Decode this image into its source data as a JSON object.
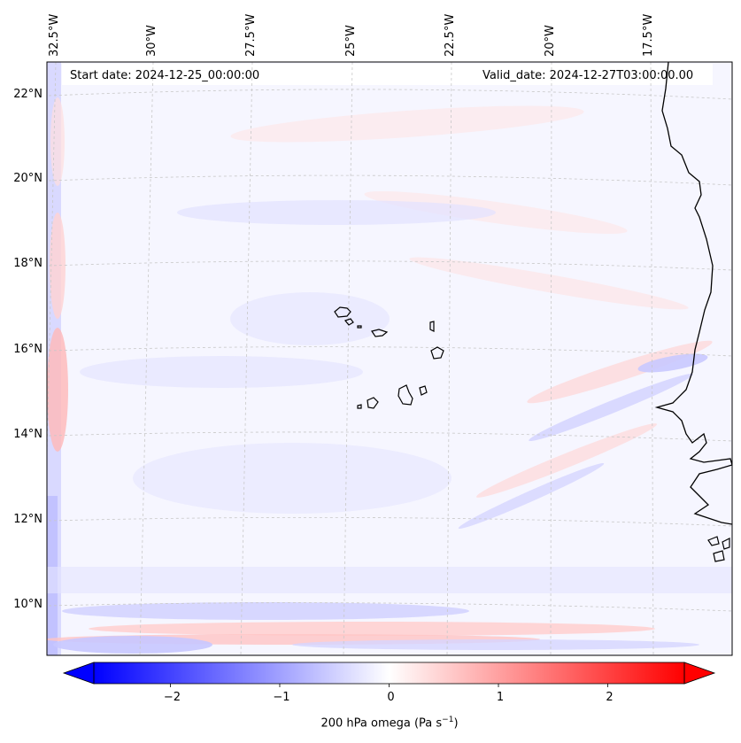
{
  "header": {
    "start_date": "Start date: 2024-12-25_00:00:00",
    "valid_date": "Valid_date: 2024-12-27T03:00:00.00"
  },
  "lon_labels": [
    "32.5°W",
    "30°W",
    "27.5°W",
    "25°W",
    "22.5°W",
    "20°W",
    "17.5°W"
  ],
  "lat_labels": [
    "22°N",
    "20°N",
    "18°N",
    "16°N",
    "14°N",
    "12°N",
    "10°N"
  ],
  "colorbar": {
    "ticks": [
      "−2",
      "−1",
      "0",
      "1",
      "2"
    ],
    "label_prefix": "200 hPa omega (Pa s",
    "label_exp": "−1",
    "label_suffix": ")",
    "min": -2.7,
    "max": 2.7,
    "tick_values": [
      -2,
      -1,
      0,
      1,
      2
    ],
    "neg_color": "#0000ff",
    "pos_color": "#ff0000"
  }
}
